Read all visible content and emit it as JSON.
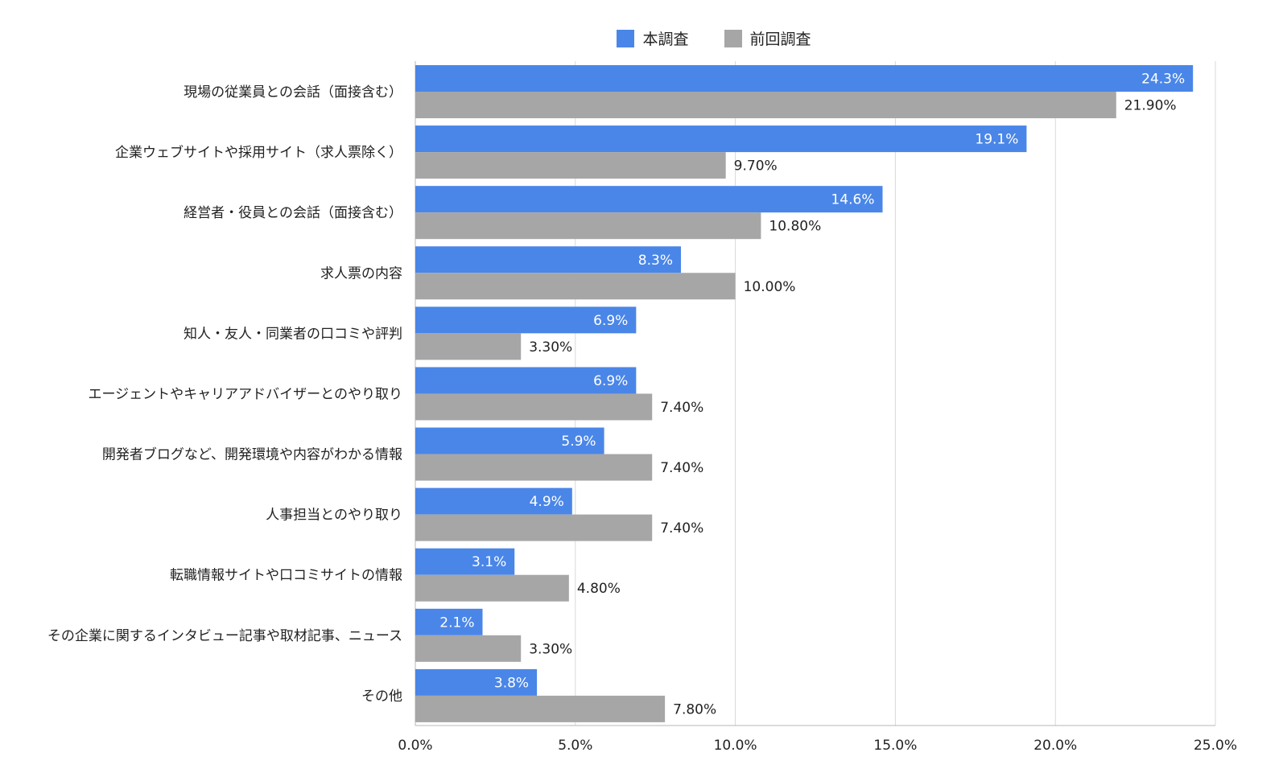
{
  "colors": {
    "current": "#4a86e8",
    "previous": "#a6a6a6",
    "grid": "#d9d9d9",
    "axis": "#b7b7b7",
    "text": "#222222",
    "label_inside": "#ffffff"
  },
  "legend": {
    "items": [
      {
        "name": "本調査",
        "color": "#4a86e8"
      },
      {
        "name": "前回調査",
        "color": "#a6a6a6"
      }
    ]
  },
  "chart_data": {
    "type": "bar",
    "orientation": "horizontal",
    "title": "",
    "xlabel": "",
    "ylabel": "",
    "xlim": [
      0,
      25
    ],
    "x_ticks": [
      "0.0%",
      "5.0%",
      "10.0%",
      "15.0%",
      "20.0%",
      "25.0%"
    ],
    "grid": true,
    "legend_position": "top-center",
    "categories": [
      "現場の従業員との会話（面接含む）",
      "企業ウェブサイトや採用サイト（求人票除く）",
      "経営者・役員との会話（面接含む）",
      "求人票の内容",
      "知人・友人・同業者の口コミや評判",
      "エージェントやキャリアアドバイザーとのやり取り",
      "開発者ブログなど、開発環境や内容がわかる情報",
      "人事担当とのやり取り",
      "転職情報サイトや口コミサイトの情報",
      "その企業に関するインタビュー記事や取材記事、ニュース",
      "その他"
    ],
    "series": [
      {
        "name": "本調査",
        "values": [
          24.3,
          19.1,
          14.6,
          8.3,
          6.9,
          6.9,
          5.9,
          4.9,
          3.1,
          2.1,
          3.8
        ],
        "labels": [
          "24.3%",
          "19.1%",
          "14.6%",
          "8.3%",
          "6.9%",
          "6.9%",
          "5.9%",
          "4.9%",
          "3.1%",
          "2.1%",
          "3.8%"
        ]
      },
      {
        "name": "前回調査",
        "values": [
          21.9,
          9.7,
          10.8,
          10.0,
          3.3,
          7.4,
          7.4,
          7.4,
          4.8,
          3.3,
          7.8
        ],
        "labels": [
          "21.90%",
          "9.70%",
          "10.80%",
          "10.00%",
          "3.30%",
          "7.40%",
          "7.40%",
          "7.40%",
          "4.80%",
          "3.30%",
          "7.80%"
        ]
      }
    ]
  }
}
